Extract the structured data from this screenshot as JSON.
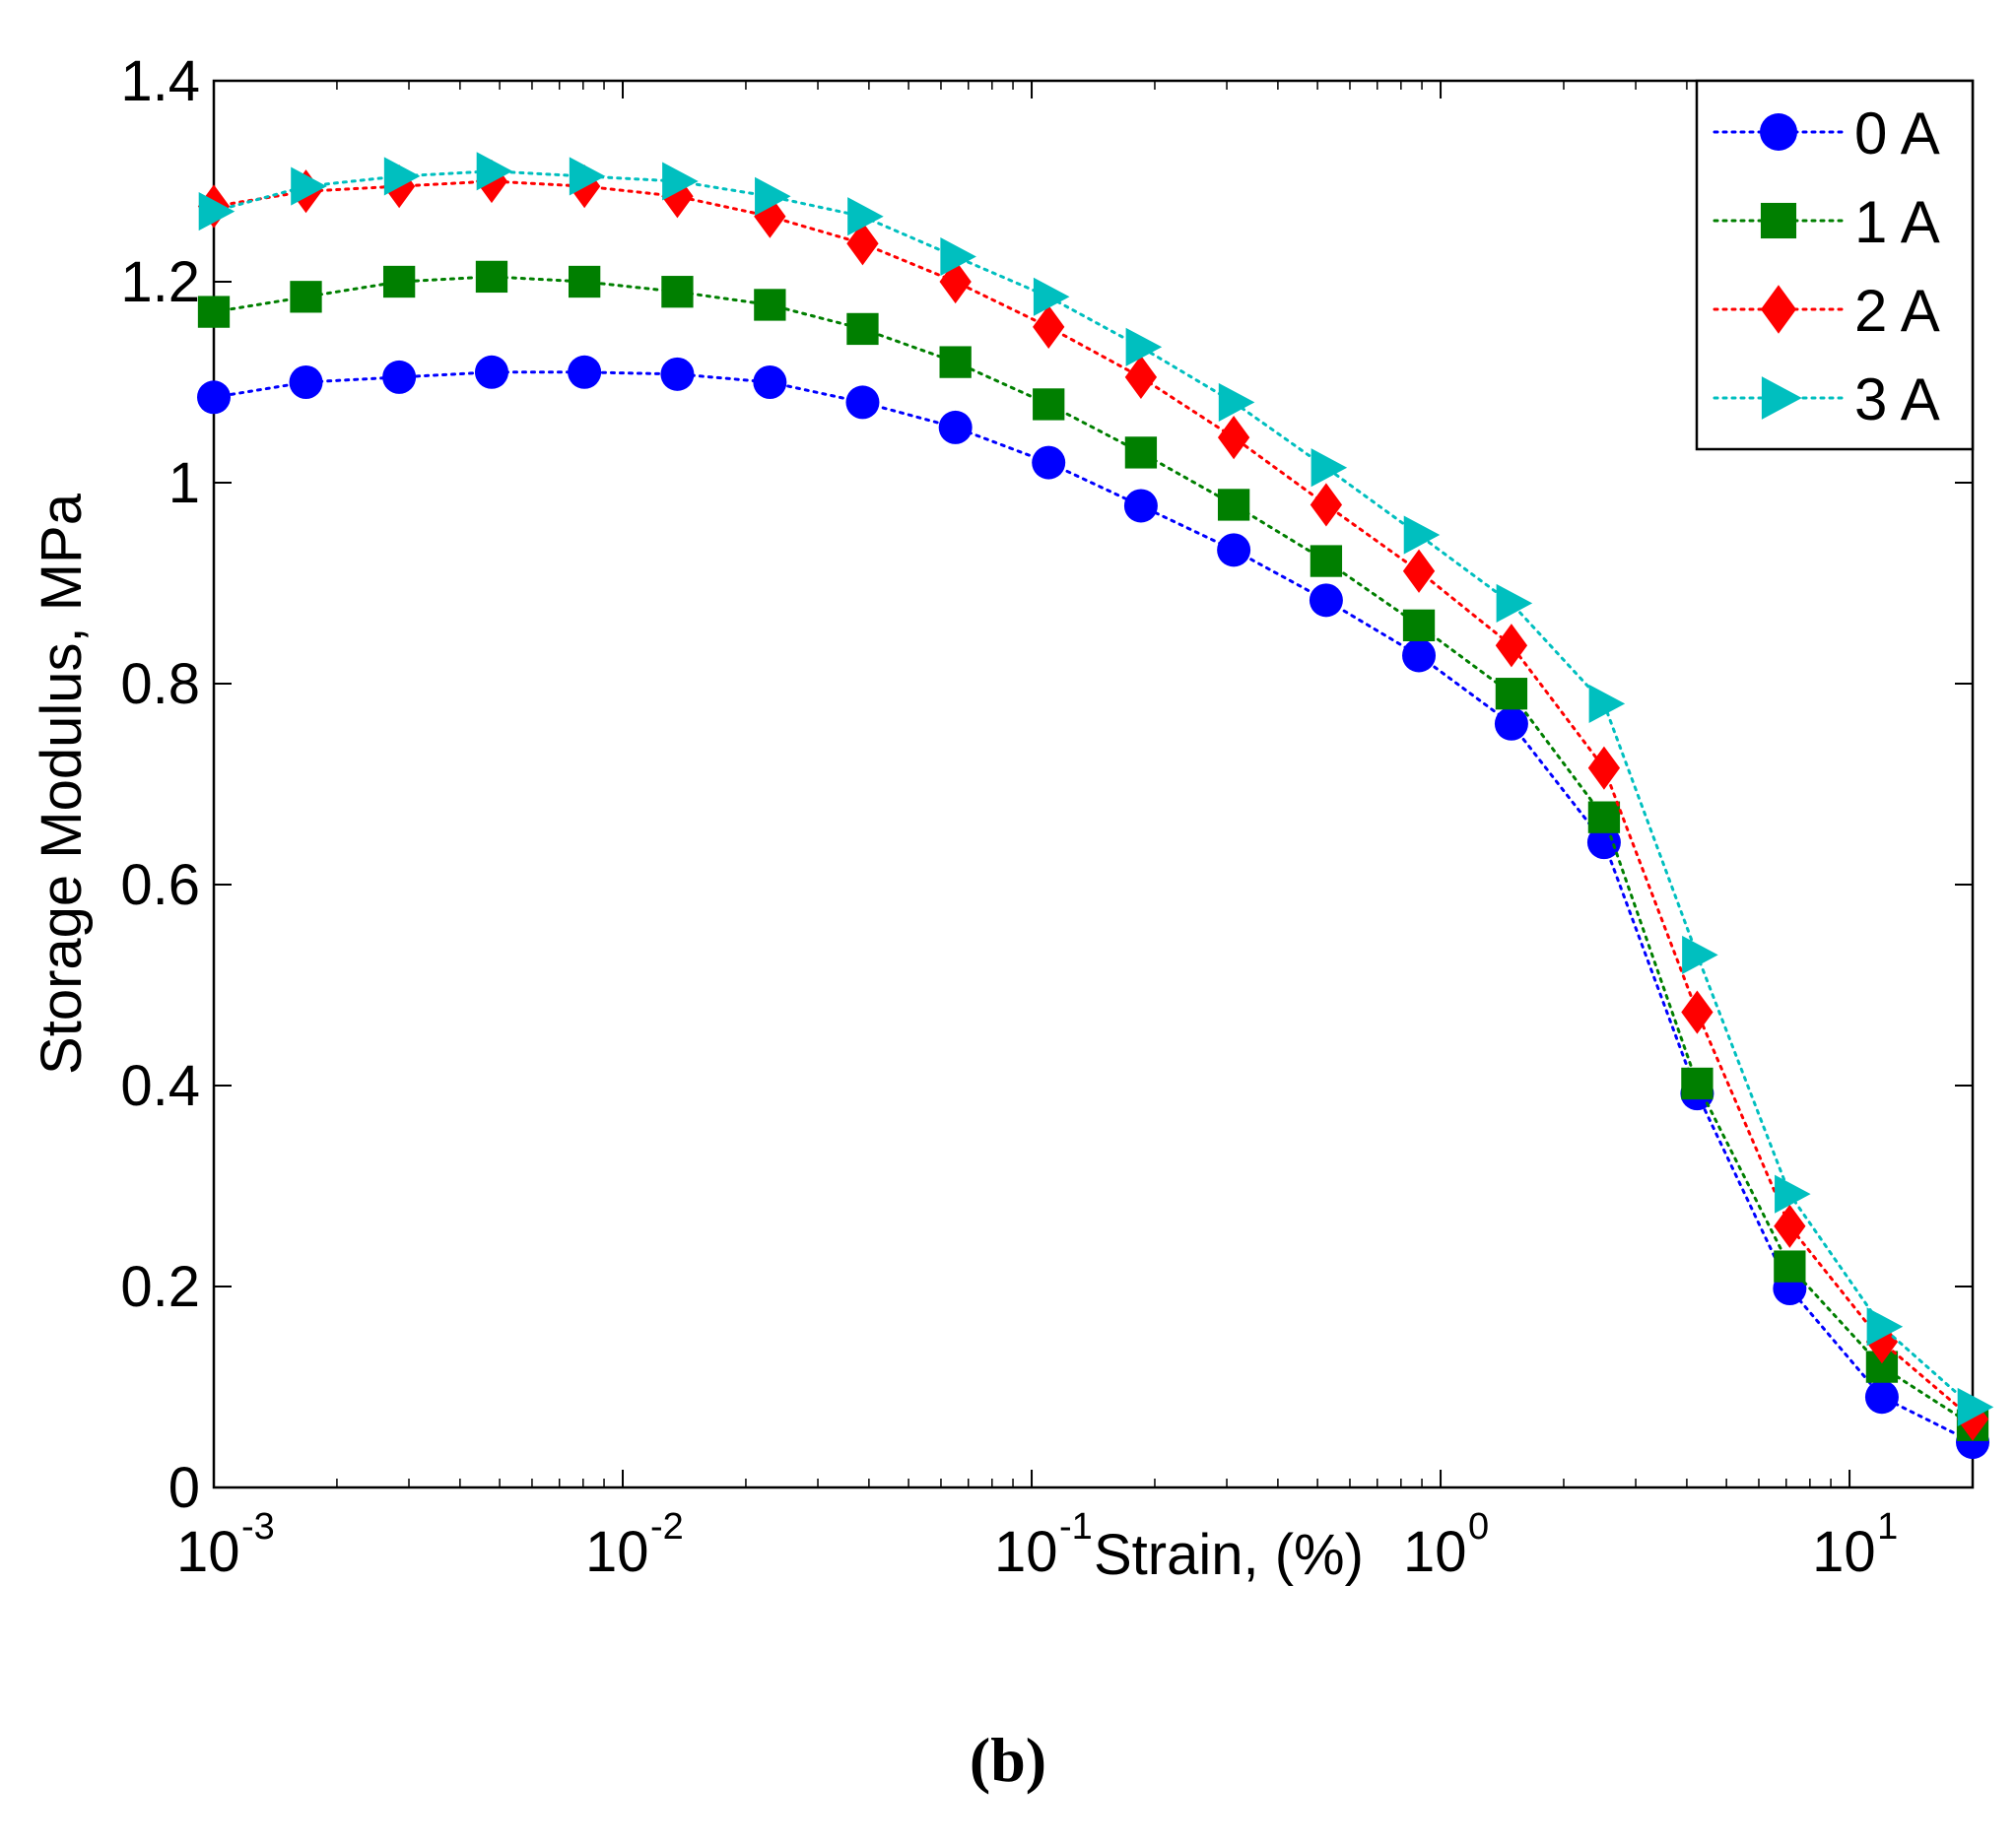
{
  "chart_data": {
    "type": "line",
    "title": "",
    "xlabel": "Strain, (%)",
    "ylabel": "Storage Modulus, MPa",
    "xscale": "log",
    "xlim": [
      0.001,
      20
    ],
    "ylim": [
      0,
      1.4
    ],
    "yticks": [
      "0",
      "0.2",
      "0.4",
      "0.6",
      "0.8",
      "1",
      "1.2",
      "1.4"
    ],
    "xticks": [
      {
        "base": "10",
        "exp": "-3",
        "value": 0.001
      },
      {
        "base": "10",
        "exp": "-2",
        "value": 0.01
      },
      {
        "base": "10",
        "exp": "-1",
        "value": 0.1
      },
      {
        "base": "10",
        "exp": "0",
        "value": 1
      },
      {
        "base": "10",
        "exp": "1",
        "value": 10
      }
    ],
    "legend_position": "top-right",
    "grid": false,
    "x": [
      0.001,
      0.00168,
      0.00284,
      0.00478,
      0.00806,
      0.0136,
      0.0229,
      0.0386,
      0.0651,
      0.11,
      0.185,
      0.312,
      0.525,
      0.885,
      1.49,
      2.51,
      4.24,
      7.14,
      12.0,
      20.0
    ],
    "series": [
      {
        "name": "0 A",
        "color": "#0000ff",
        "marker": "circle",
        "values": [
          1.085,
          1.1,
          1.105,
          1.11,
          1.11,
          1.108,
          1.1,
          1.08,
          1.055,
          1.02,
          0.977,
          0.933,
          0.883,
          0.828,
          0.76,
          0.642,
          0.392,
          0.198,
          0.09,
          0.045
        ]
      },
      {
        "name": "1 A",
        "color": "#007f00",
        "marker": "square",
        "values": [
          1.17,
          1.185,
          1.2,
          1.205,
          1.2,
          1.19,
          1.177,
          1.153,
          1.12,
          1.078,
          1.03,
          0.978,
          0.922,
          0.858,
          0.79,
          0.667,
          0.402,
          0.22,
          0.12,
          0.062
        ]
      },
      {
        "name": "2 A",
        "color": "#ff0000",
        "marker": "diamond",
        "values": [
          1.275,
          1.29,
          1.295,
          1.3,
          1.295,
          1.285,
          1.265,
          1.238,
          1.2,
          1.155,
          1.105,
          1.045,
          0.978,
          0.912,
          0.838,
          0.716,
          0.473,
          0.26,
          0.145,
          0.068
        ]
      },
      {
        "name": "3 A",
        "color": "#00bfbf",
        "marker": "triangle-right",
        "values": [
          1.27,
          1.295,
          1.305,
          1.31,
          1.305,
          1.3,
          1.285,
          1.265,
          1.225,
          1.185,
          1.135,
          1.08,
          1.015,
          0.948,
          0.88,
          0.78,
          0.53,
          0.292,
          0.16,
          0.08
        ]
      }
    ]
  },
  "panel_label": "(b)"
}
